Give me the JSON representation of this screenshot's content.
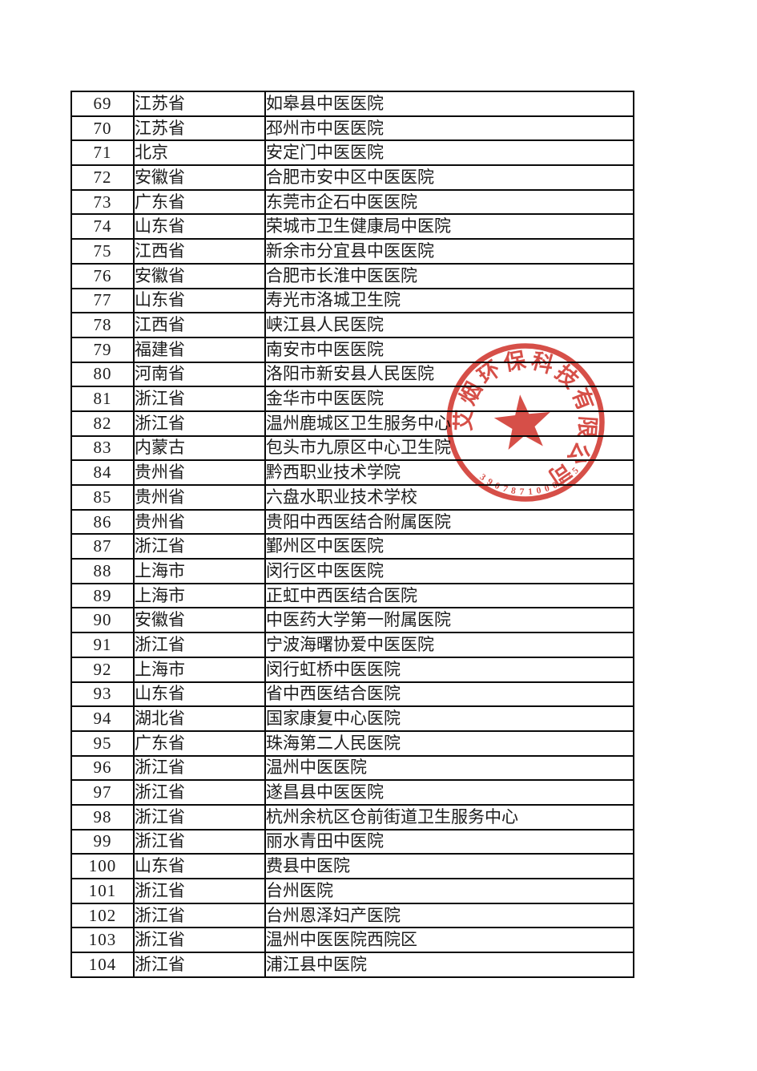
{
  "document": {
    "kind": "scanned-hospital-list-page",
    "table": {
      "rows": [
        {
          "no": "69",
          "province": "江苏省",
          "name": "如皋县中医医院"
        },
        {
          "no": "70",
          "province": "江苏省",
          "name": "邳州市中医医院"
        },
        {
          "no": "71",
          "province": "北京",
          "name": "安定门中医医院"
        },
        {
          "no": "72",
          "province": "安徽省",
          "name": "合肥市安中区中医医院"
        },
        {
          "no": "73",
          "province": "广东省",
          "name": "东莞市企石中医医院"
        },
        {
          "no": "74",
          "province": "山东省",
          "name": "荣城市卫生健康局中医院"
        },
        {
          "no": "75",
          "province": "江西省",
          "name": "新余市分宜县中医医院"
        },
        {
          "no": "76",
          "province": "安徽省",
          "name": "合肥市长淮中医医院"
        },
        {
          "no": "77",
          "province": "山东省",
          "name": "寿光市洛城卫生院"
        },
        {
          "no": "78",
          "province": "江西省",
          "name": "峡江县人民医院"
        },
        {
          "no": "79",
          "province": "福建省",
          "name": "南安市中医医院"
        },
        {
          "no": "80",
          "province": "河南省",
          "name": "洛阳市新安县人民医院"
        },
        {
          "no": "81",
          "province": "浙江省",
          "name": "金华市中医医院"
        },
        {
          "no": "82",
          "province": "浙江省",
          "name": "温州鹿城区卫生服务中心"
        },
        {
          "no": "83",
          "province": "内蒙古",
          "name": "包头市九原区中心卫生院"
        },
        {
          "no": "84",
          "province": "贵州省",
          "name": "黔西职业技术学院"
        },
        {
          "no": "85",
          "province": "贵州省",
          "name": "六盘水职业技术学校"
        },
        {
          "no": "86",
          "province": "贵州省",
          "name": "贵阳中西医结合附属医院"
        },
        {
          "no": "87",
          "province": "浙江省",
          "name": "鄞州区中医医院"
        },
        {
          "no": "88",
          "province": "上海市",
          "name": "闵行区中医医院"
        },
        {
          "no": "89",
          "province": "上海市",
          "name": "正虹中西医结合医院"
        },
        {
          "no": "90",
          "province": "安徽省",
          "name": "中医药大学第一附属医院"
        },
        {
          "no": "91",
          "province": "浙江省",
          "name": "宁波海曙协爱中医医院"
        },
        {
          "no": "92",
          "province": "上海市",
          "name": "闵行虹桥中医医院"
        },
        {
          "no": "93",
          "province": "山东省",
          "name": "省中西医结合医院"
        },
        {
          "no": "94",
          "province": "湖北省",
          "name": "国家康复中心医院"
        },
        {
          "no": "95",
          "province": "广东省",
          "name": "珠海第二人民医院"
        },
        {
          "no": "96",
          "province": "浙江省",
          "name": "温州中医医院"
        },
        {
          "no": "97",
          "province": "浙江省",
          "name": "遂昌县中医医院"
        },
        {
          "no": "98",
          "province": "浙江省",
          "name": "杭州余杭区仓前街道卫生服务中心"
        },
        {
          "no": "99",
          "province": "浙江省",
          "name": "丽水青田中医院"
        },
        {
          "no": "100",
          "province": "山东省",
          "name": "费县中医院"
        },
        {
          "no": "101",
          "province": "浙江省",
          "name": "台州医院"
        },
        {
          "no": "102",
          "province": "浙江省",
          "name": "台州恩泽妇产医院"
        },
        {
          "no": "103",
          "province": "浙江省",
          "name": "温州中医医院西院区"
        },
        {
          "no": "104",
          "province": "浙江省",
          "name": "浦江县中医院"
        }
      ]
    },
    "stamp": {
      "ring_text": "艾烟环保科技有限公司",
      "serial_number": "3907871000075",
      "color": "#d23c34"
    }
  }
}
